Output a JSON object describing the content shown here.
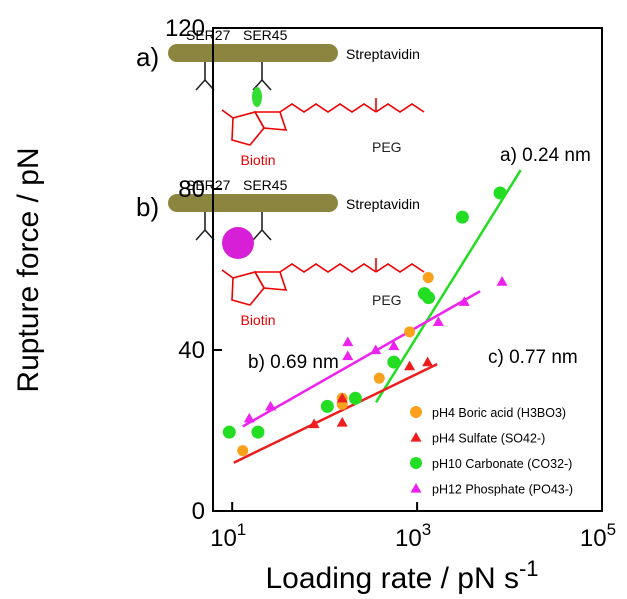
{
  "chart_data": {
    "type": "scatter",
    "xlabel": "Loading rate / pN s",
    "xlabel_exponent": "-1",
    "ylabel": "Rupture force / pN",
    "xscale": "log",
    "xlim": [
      6.2,
      100000
    ],
    "ylim": [
      0,
      120
    ],
    "xticks": [
      {
        "value": 10,
        "label": "10",
        "exponent": "1"
      },
      {
        "value": 1000,
        "label": "10",
        "exponent": "3"
      },
      {
        "value": 100000,
        "label": "10",
        "exponent": "5"
      }
    ],
    "yticks": [
      0,
      40,
      80,
      120
    ],
    "legend": "lower right",
    "series": [
      {
        "name": "pH4 Boric acid (H3BO3)",
        "color": "#f9a11b",
        "marker": "circle",
        "x": [
          13,
          155,
          155,
          390,
          830,
          1320
        ],
        "values": [
          15,
          28,
          26.5,
          33,
          44.5,
          58
        ]
      },
      {
        "name": "pH4 Sulfate (SO42-)",
        "color": "#ee1c1c",
        "marker": "triangle",
        "x": [
          77,
          155,
          155,
          830,
          1300
        ],
        "values": [
          21.6,
          22,
          28,
          36,
          37
        ]
      },
      {
        "name": "pH10 Carbonate (CO32-)",
        "color": "#22dd22",
        "marker": "circle",
        "x": [
          9.3,
          19,
          107,
          215,
          560,
          1200,
          1330,
          3090,
          7900
        ],
        "values": [
          19.6,
          19.6,
          26,
          28,
          37,
          54,
          53,
          73,
          79
        ]
      },
      {
        "name": "pH12 Phosphate (PO43-)",
        "color": "#ee22ee",
        "marker": "triangle",
        "x": [
          15.3,
          26,
          178,
          178,
          357,
          560,
          1700,
          3240,
          8300
        ],
        "values": [
          23,
          26,
          38.5,
          42,
          40,
          41,
          47,
          52,
          57
        ]
      }
    ],
    "fits": [
      {
        "color": "#22dd22",
        "x": [
          360,
          13200
        ],
        "values": [
          27,
          84.7
        ]
      },
      {
        "color": "#ee1c1c",
        "x": [
          10.4,
          1650
        ],
        "values": [
          12,
          36.5
        ]
      },
      {
        "color": "#ee22ee",
        "x": [
          13,
          4800
        ],
        "values": [
          21,
          54.6
        ]
      }
    ],
    "annotations": [
      "a) 0.24 nm",
      "b) 0.69 nm",
      "c) 0.77 nm"
    ],
    "insets": [
      {
        "label": "a)",
        "residues": [
          "SER27",
          "SER45"
        ],
        "protein": "Streptavidin",
        "ligand": "Biotin",
        "linker": "PEG"
      },
      {
        "label": "b)",
        "residues": [
          "SER27",
          "SER45"
        ],
        "protein": "Streptavidin",
        "ligand": "Biotin",
        "linker": "PEG"
      }
    ]
  }
}
